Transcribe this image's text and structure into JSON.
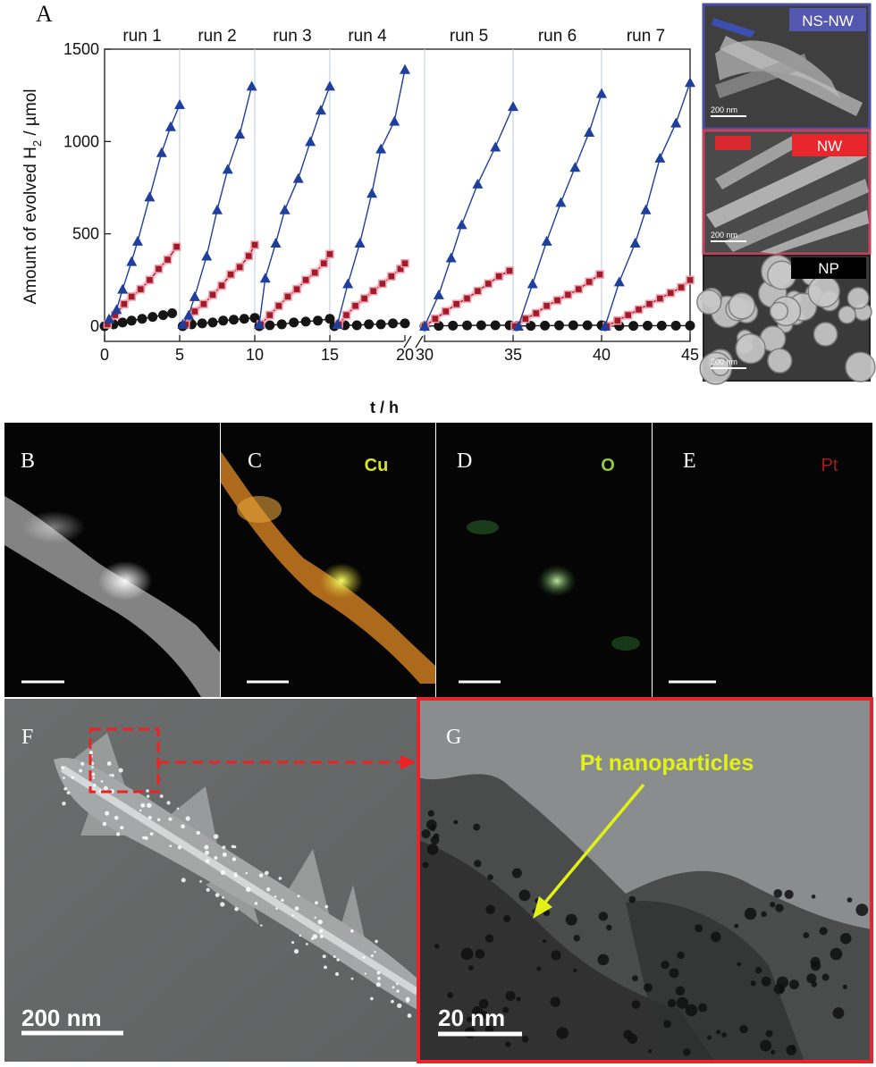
{
  "panels": {
    "a": "A",
    "b": "B",
    "c": "C",
    "d": "D",
    "e": "E",
    "f": "F",
    "g": "G"
  },
  "chart_data": {
    "type": "line",
    "title": "",
    "xlabel": "t / h",
    "ylabel_main": "Amount of evolved H",
    "ylabel_sub": "2",
    "ylabel_tail": " / µmol",
    "xlim": [
      0,
      45
    ],
    "axis_break": [
      20,
      30
    ],
    "ylim": [
      0,
      1500
    ],
    "xticks": [
      0,
      5,
      10,
      15,
      20,
      30,
      35,
      40,
      45
    ],
    "xtick_labels": [
      "0",
      "5",
      "10",
      "15",
      "20",
      "30",
      "35",
      "40",
      "45"
    ],
    "yticks": [
      0,
      500,
      1000,
      1500
    ],
    "ytick_labels": [
      "0",
      "500",
      "1000",
      "1500"
    ],
    "run_lines": [
      5,
      10,
      15,
      30,
      35,
      40
    ],
    "run_labels": [
      {
        "text": "run 1",
        "x": 2.5
      },
      {
        "text": "run 2",
        "x": 7.5
      },
      {
        "text": "run 3",
        "x": 12.5
      },
      {
        "text": "run 4",
        "x": 17.5
      },
      {
        "text": "run 5",
        "x": 32.5
      },
      {
        "text": "run 6",
        "x": 37.5
      },
      {
        "text": "run 7",
        "x": 42.5
      }
    ],
    "grid": false,
    "legend": "none",
    "series": [
      {
        "key": "ns-nw",
        "color": "#1f3f9c",
        "marker": "triangle",
        "runs": [
          {
            "x": [
              0.3,
              0.8,
              1.2,
              1.8,
              2.2,
              3.0,
              3.8,
              4.4,
              5.0
            ],
            "y": [
              40,
              90,
              200,
              350,
              460,
              700,
              940,
              1080,
              1200
            ]
          },
          {
            "x": [
              5.2,
              5.6,
              6.0,
              6.8,
              7.5,
              8.2,
              9.0,
              9.8
            ],
            "y": [
              10,
              60,
              160,
              380,
              630,
              850,
              1040,
              1300
            ]
          },
          {
            "x": [
              10.3,
              10.7,
              11.4,
              12.0,
              12.9,
              13.7,
              14.4,
              15.0
            ],
            "y": [
              10,
              260,
              450,
              630,
              800,
              1000,
              1170,
              1300
            ]
          },
          {
            "x": [
              15.5,
              16.2,
              17.0,
              17.8,
              18.4,
              19.3,
              20.0
            ],
            "y": [
              10,
              230,
              450,
              720,
              960,
              1110,
              1390
            ]
          },
          {
            "x": [
              30.0,
              30.8,
              31.5,
              32.1,
              33.0,
              34.0,
              35.0
            ],
            "y": [
              0,
              170,
              370,
              550,
              770,
              970,
              1190
            ]
          },
          {
            "x": [
              35.3,
              36.1,
              36.9,
              37.7,
              38.5,
              39.3,
              40.0
            ],
            "y": [
              0,
              230,
              460,
              670,
              860,
              1050,
              1260
            ]
          },
          {
            "x": [
              40.2,
              41.0,
              41.9,
              42.5,
              43.3,
              44.2,
              45.0
            ],
            "y": [
              0,
              240,
              450,
              630,
              910,
              1100,
              1320
            ]
          }
        ]
      },
      {
        "key": "nw",
        "color": "#9e1b2a",
        "marker": "square",
        "runs": [
          {
            "x": [
              0.2,
              0.7,
              1.3,
              1.8,
              2.4,
              3.0,
              3.6,
              4.2,
              4.8
            ],
            "y": [
              10,
              60,
              120,
              160,
              200,
              250,
              310,
              360,
              430
            ]
          },
          {
            "x": [
              5.4,
              6.0,
              6.6,
              7.2,
              7.8,
              8.4,
              9.0,
              9.6,
              10.0
            ],
            "y": [
              10,
              80,
              120,
              170,
              220,
              280,
              320,
              380,
              440
            ]
          },
          {
            "x": [
              10.4,
              11.0,
              11.6,
              12.2,
              12.8,
              13.4,
              14.0,
              14.6,
              15.0
            ],
            "y": [
              10,
              60,
              110,
              160,
              200,
              250,
              290,
              340,
              390
            ]
          },
          {
            "x": [
              15.6,
              16.1,
              16.7,
              17.3,
              17.9,
              18.5,
              19.1,
              19.7,
              20.0
            ],
            "y": [
              10,
              60,
              110,
              150,
              190,
              230,
              270,
              310,
              340
            ]
          },
          {
            "x": [
              30.0,
              30.6,
              31.2,
              31.8,
              32.4,
              33.0,
              33.6,
              34.2,
              34.8
            ],
            "y": [
              0,
              40,
              80,
              120,
              150,
              190,
              230,
              270,
              300
            ]
          },
          {
            "x": [
              35.1,
              35.7,
              36.3,
              36.9,
              37.5,
              38.1,
              38.7,
              39.3,
              39.9
            ],
            "y": [
              0,
              40,
              70,
              110,
              140,
              170,
              200,
              240,
              280
            ]
          },
          {
            "x": [
              40.3,
              40.9,
              41.5,
              42.1,
              42.7,
              43.3,
              43.9,
              44.5,
              45.0
            ],
            "y": [
              0,
              30,
              60,
              90,
              120,
              150,
              180,
              210,
              250
            ]
          }
        ]
      },
      {
        "key": "np",
        "color": "#151515",
        "marker": "circle",
        "runs": [
          {
            "x": [
              0.0,
              0.6,
              1.2,
              1.8,
              2.5,
              3.2,
              3.9,
              4.5
            ],
            "y": [
              0,
              10,
              20,
              30,
              40,
              50,
              60,
              70
            ]
          },
          {
            "x": [
              5.2,
              5.8,
              6.5,
              7.2,
              7.9,
              8.6,
              9.3,
              10.0
            ],
            "y": [
              0,
              10,
              15,
              20,
              30,
              35,
              40,
              45
            ]
          },
          {
            "x": [
              10.3,
              11.0,
              11.8,
              12.6,
              13.4,
              14.2,
              15.0
            ],
            "y": [
              0,
              5,
              10,
              20,
              25,
              30,
              40
            ]
          },
          {
            "x": [
              15.3,
              16.0,
              16.8,
              17.6,
              18.4,
              19.2,
              20.0
            ],
            "y": [
              0,
              5,
              5,
              10,
              10,
              15,
              15
            ]
          },
          {
            "x": [
              30.0,
              30.8,
              31.6,
              32.4,
              33.2,
              34.0,
              34.8
            ],
            "y": [
              0,
              2,
              3,
              4,
              5,
              5,
              5
            ]
          },
          {
            "x": [
              35.2,
              36.0,
              36.8,
              37.6,
              38.4,
              39.2,
              40.0
            ],
            "y": [
              0,
              2,
              3,
              4,
              5,
              5,
              5
            ]
          },
          {
            "x": [
              40.2,
              41.0,
              41.8,
              42.6,
              43.4,
              44.2,
              45.0
            ],
            "y": [
              0,
              1,
              2,
              3,
              3,
              3,
              3
            ]
          }
        ]
      }
    ]
  },
  "sem_insets": [
    {
      "key": "ns-nw",
      "label": "NS-NW",
      "scale": "200 nm",
      "frame": "#4a4fa5",
      "badge": "#5659b9"
    },
    {
      "key": "nw",
      "label": "NW",
      "scale": "200 nm",
      "frame": "#c6415c",
      "badge": "#e8262b"
    },
    {
      "key": "np",
      "label": "NP",
      "scale": "200 nm",
      "frame": "#222222",
      "badge": "#000000"
    }
  ],
  "eds_maps": {
    "c_element": "Cu",
    "d_element": "O",
    "e_element": "Pt"
  },
  "tem": {
    "f_scale": "200 nm",
    "g_scale": "20 nm",
    "g_annotation": "Pt nanoparticles"
  }
}
